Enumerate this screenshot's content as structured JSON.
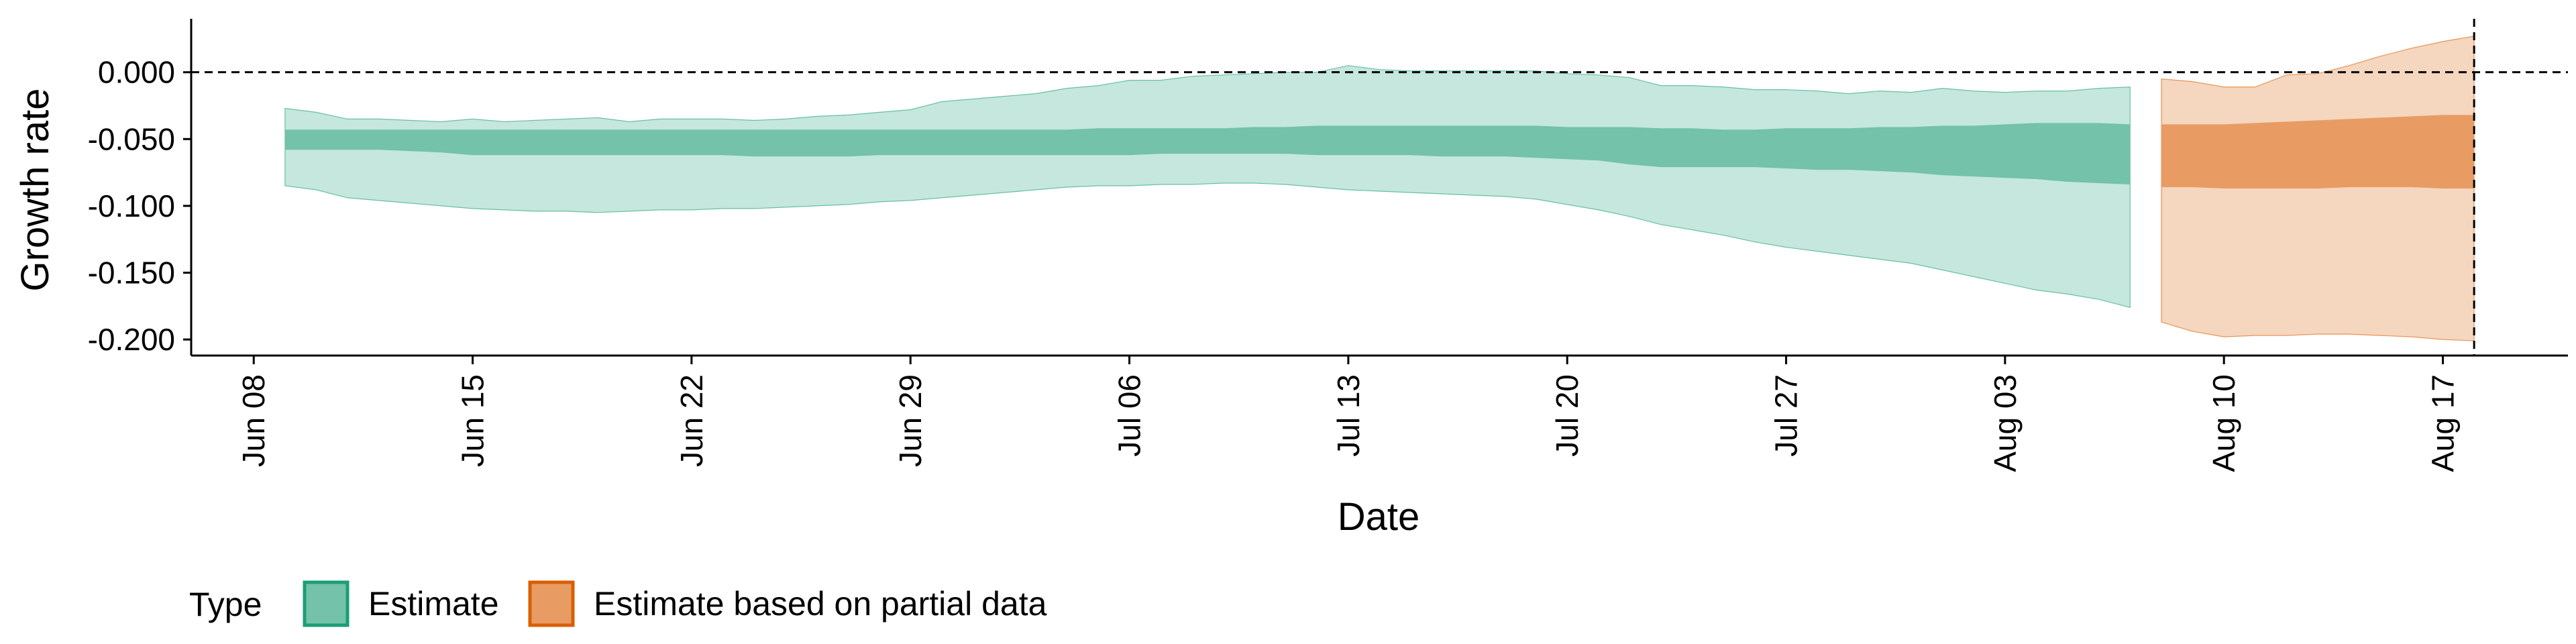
{
  "chart_data": {
    "type": "area",
    "xlabel": "Date",
    "ylabel": "Growth rate",
    "ylim": [
      -0.212,
      0.04
    ],
    "y_ticks": [
      0.0,
      -0.05,
      -0.1,
      -0.15,
      -0.2
    ],
    "y_tick_labels": [
      "0.000",
      "-0.050",
      "-0.100",
      "-0.150",
      "-0.200"
    ],
    "x_ticks": [
      "2020-06-08",
      "2020-06-15",
      "2020-06-22",
      "2020-06-29",
      "2020-07-06",
      "2020-07-13",
      "2020-07-20",
      "2020-07-27",
      "2020-08-03",
      "2020-08-10",
      "2020-08-17"
    ],
    "x_tick_labels": [
      "Jun 08",
      "Jun 15",
      "Jun 22",
      "Jun 29",
      "Jul 06",
      "Jul 13",
      "Jul 20",
      "Jul 27",
      "Aug 03",
      "Aug 10",
      "Aug 17"
    ],
    "xlim": [
      "2020-06-06",
      "2020-08-21"
    ],
    "reference_lines": {
      "horizontal_y": 0.0,
      "vertical_x": "2020-08-18"
    },
    "legend": {
      "title": "Type",
      "position": "bottom-left",
      "items": [
        "Estimate",
        "Estimate based on partial data"
      ]
    },
    "grid": false,
    "series": [
      {
        "name": "Estimate",
        "color": "#1b9e77",
        "inner_color": "#73c2a9",
        "outer_color": "#c5e7dd",
        "x": [
          "2020-06-09",
          "2020-06-10",
          "2020-06-11",
          "2020-06-12",
          "2020-06-13",
          "2020-06-14",
          "2020-06-15",
          "2020-06-16",
          "2020-06-17",
          "2020-06-18",
          "2020-06-19",
          "2020-06-20",
          "2020-06-21",
          "2020-06-22",
          "2020-06-23",
          "2020-06-24",
          "2020-06-25",
          "2020-06-26",
          "2020-06-27",
          "2020-06-28",
          "2020-06-29",
          "2020-06-30",
          "2020-07-01",
          "2020-07-02",
          "2020-07-03",
          "2020-07-04",
          "2020-07-05",
          "2020-07-06",
          "2020-07-07",
          "2020-07-08",
          "2020-07-09",
          "2020-07-10",
          "2020-07-11",
          "2020-07-12",
          "2020-07-13",
          "2020-07-14",
          "2020-07-15",
          "2020-07-16",
          "2020-07-17",
          "2020-07-18",
          "2020-07-19",
          "2020-07-20",
          "2020-07-21",
          "2020-07-22",
          "2020-07-23",
          "2020-07-24",
          "2020-07-25",
          "2020-07-26",
          "2020-07-27",
          "2020-07-28",
          "2020-07-29",
          "2020-07-30",
          "2020-07-31",
          "2020-08-01",
          "2020-08-02",
          "2020-08-03",
          "2020-08-04",
          "2020-08-05",
          "2020-08-06",
          "2020-08-07"
        ],
        "outer_upper": [
          -0.027,
          -0.03,
          -0.035,
          -0.035,
          -0.036,
          -0.037,
          -0.035,
          -0.037,
          -0.036,
          -0.035,
          -0.034,
          -0.037,
          -0.035,
          -0.035,
          -0.035,
          -0.036,
          -0.035,
          -0.033,
          -0.032,
          -0.03,
          -0.028,
          -0.022,
          -0.02,
          -0.018,
          -0.016,
          -0.012,
          -0.01,
          -0.006,
          -0.006,
          -0.003,
          -0.002,
          -0.001,
          0.0,
          0.0,
          0.005,
          0.002,
          0.001,
          0.001,
          0.001,
          0.001,
          0.001,
          -0.001,
          -0.002,
          -0.004,
          -0.01,
          -0.01,
          -0.011,
          -0.013,
          -0.013,
          -0.014,
          -0.016,
          -0.014,
          -0.015,
          -0.012,
          -0.014,
          -0.015,
          -0.014,
          -0.014,
          -0.012,
          -0.011
        ],
        "inner_upper": [
          -0.043,
          -0.043,
          -0.043,
          -0.043,
          -0.043,
          -0.043,
          -0.043,
          -0.043,
          -0.043,
          -0.043,
          -0.043,
          -0.043,
          -0.043,
          -0.043,
          -0.043,
          -0.043,
          -0.043,
          -0.043,
          -0.043,
          -0.043,
          -0.043,
          -0.043,
          -0.043,
          -0.043,
          -0.043,
          -0.043,
          -0.042,
          -0.042,
          -0.042,
          -0.042,
          -0.042,
          -0.041,
          -0.041,
          -0.04,
          -0.04,
          -0.04,
          -0.04,
          -0.04,
          -0.04,
          -0.04,
          -0.04,
          -0.041,
          -0.041,
          -0.041,
          -0.042,
          -0.042,
          -0.043,
          -0.043,
          -0.042,
          -0.042,
          -0.042,
          -0.041,
          -0.041,
          -0.04,
          -0.04,
          -0.039,
          -0.038,
          -0.038,
          -0.038,
          -0.039
        ],
        "inner_lower": [
          -0.058,
          -0.058,
          -0.058,
          -0.058,
          -0.059,
          -0.06,
          -0.062,
          -0.062,
          -0.062,
          -0.062,
          -0.062,
          -0.062,
          -0.062,
          -0.062,
          -0.062,
          -0.063,
          -0.063,
          -0.063,
          -0.063,
          -0.062,
          -0.062,
          -0.062,
          -0.062,
          -0.062,
          -0.062,
          -0.062,
          -0.062,
          -0.062,
          -0.061,
          -0.061,
          -0.061,
          -0.061,
          -0.061,
          -0.062,
          -0.062,
          -0.062,
          -0.062,
          -0.063,
          -0.063,
          -0.063,
          -0.064,
          -0.065,
          -0.066,
          -0.069,
          -0.071,
          -0.071,
          -0.071,
          -0.071,
          -0.072,
          -0.073,
          -0.073,
          -0.074,
          -0.075,
          -0.077,
          -0.078,
          -0.079,
          -0.08,
          -0.082,
          -0.083,
          -0.084
        ],
        "outer_lower": [
          -0.085,
          -0.088,
          -0.094,
          -0.096,
          -0.098,
          -0.1,
          -0.102,
          -0.103,
          -0.104,
          -0.104,
          -0.105,
          -0.104,
          -0.103,
          -0.103,
          -0.102,
          -0.102,
          -0.101,
          -0.1,
          -0.099,
          -0.097,
          -0.096,
          -0.094,
          -0.092,
          -0.09,
          -0.088,
          -0.086,
          -0.085,
          -0.085,
          -0.084,
          -0.084,
          -0.083,
          -0.083,
          -0.084,
          -0.086,
          -0.088,
          -0.089,
          -0.09,
          -0.091,
          -0.092,
          -0.093,
          -0.095,
          -0.099,
          -0.103,
          -0.108,
          -0.114,
          -0.118,
          -0.122,
          -0.127,
          -0.131,
          -0.134,
          -0.137,
          -0.14,
          -0.143,
          -0.148,
          -0.153,
          -0.158,
          -0.163,
          -0.166,
          -0.17,
          -0.176
        ]
      },
      {
        "name": "Estimate based on partial data",
        "color": "#d95f02",
        "inner_color": "#e89c63",
        "outer_color": "#f5d6bf",
        "x": [
          "2020-08-08",
          "2020-08-09",
          "2020-08-10",
          "2020-08-11",
          "2020-08-12",
          "2020-08-13",
          "2020-08-14",
          "2020-08-15",
          "2020-08-16",
          "2020-08-17",
          "2020-08-18"
        ],
        "outer_upper": [
          -0.005,
          -0.007,
          -0.011,
          -0.011,
          -0.002,
          -0.001,
          0.005,
          0.012,
          0.018,
          0.023,
          0.027
        ],
        "inner_upper": [
          -0.039,
          -0.039,
          -0.039,
          -0.038,
          -0.037,
          -0.036,
          -0.035,
          -0.034,
          -0.033,
          -0.032,
          -0.032
        ],
        "inner_lower": [
          -0.086,
          -0.086,
          -0.087,
          -0.087,
          -0.087,
          -0.087,
          -0.086,
          -0.086,
          -0.086,
          -0.087,
          -0.087
        ],
        "outer_lower": [
          -0.187,
          -0.194,
          -0.198,
          -0.197,
          -0.197,
          -0.196,
          -0.196,
          -0.197,
          -0.198,
          -0.2,
          -0.201
        ]
      }
    ]
  }
}
